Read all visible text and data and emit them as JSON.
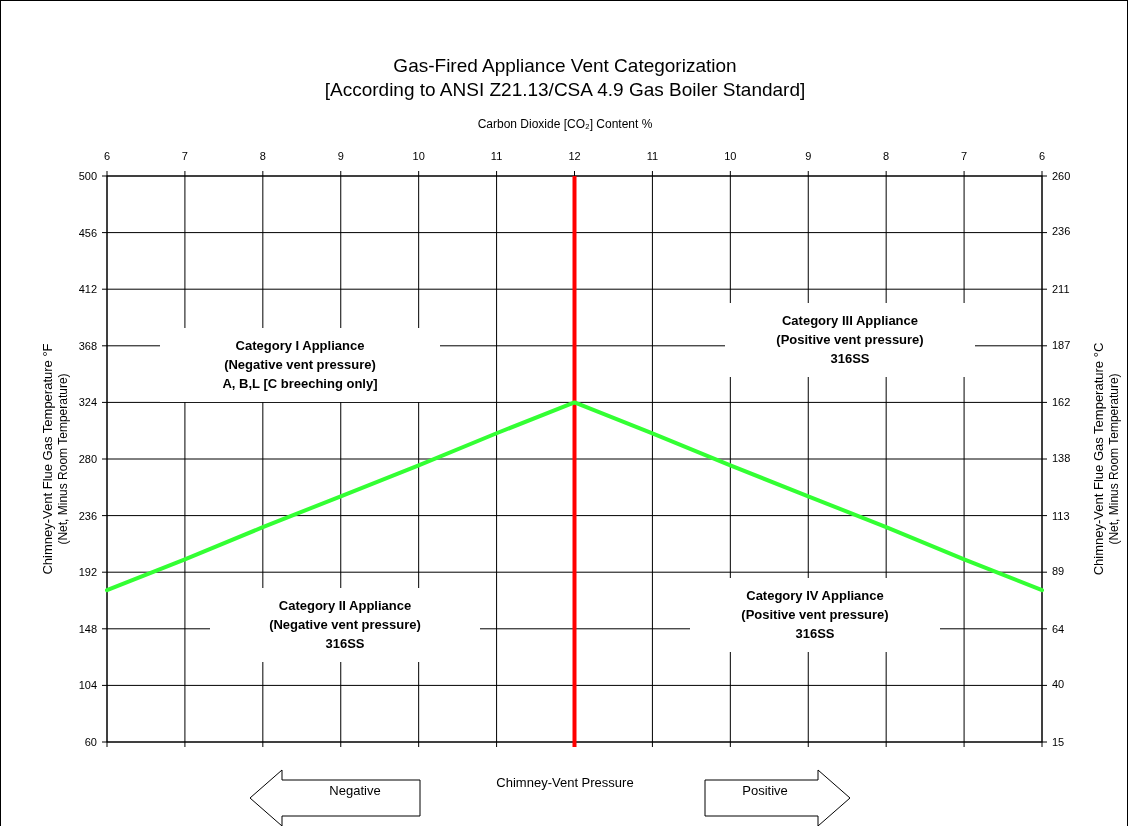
{
  "chart_data": {
    "type": "line",
    "title": "Gas-Fired Appliance Vent Categorization",
    "subtitle": "[According to ANSI Z21.13/CSA 4.9 Gas Boiler Standard]",
    "xlabel": "Carbon Dioxide [CO₂] Content %",
    "ylabel": "Chimney-Vent Flue Gas Temperature °F\n(Net, Minus Room Temperature)",
    "y2label": "Chimney-Vent Flue Gas Temperature °C\n(Net, Minus Room Temperature)",
    "categories": [
      "6",
      "7",
      "8",
      "9",
      "10",
      "11",
      "12",
      "11",
      "10",
      "9",
      "8",
      "7",
      "6"
    ],
    "ylim": [
      60,
      500
    ],
    "yticks": [
      60,
      104,
      148,
      192,
      236,
      280,
      324,
      368,
      412,
      456,
      500
    ],
    "y2lim": [
      15,
      260
    ],
    "y2ticks": [
      15,
      40,
      64,
      89,
      113,
      138,
      162,
      187,
      211,
      236,
      260
    ],
    "series": [
      {
        "color": "#33ff33",
        "values": [
          178,
          202,
          227,
          251,
          275,
          300,
          324,
          300,
          275,
          251,
          227,
          202,
          178
        ]
      }
    ],
    "ref_lines": [
      {
        "axis": "x",
        "value": "12",
        "color": "#ff0000"
      }
    ],
    "grid": true,
    "annotations": [
      "Category I Appliance\n(Negative vent pressure)\nA, B,L [C breeching only]",
      "Category III Appliance\n(Positive vent pressure)\n316SS",
      "Category II Appliance\n(Negative vent pressure)\n316SS",
      "Category IV Appliance\n(Positive vent pressure)\n316SS",
      "Chimney-Vent  Pressure",
      "Negative",
      "Positive"
    ]
  }
}
